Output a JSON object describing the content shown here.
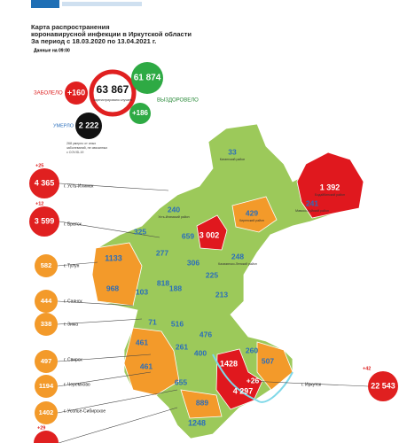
{
  "header": {
    "title_lines": [
      "Карта распространения",
      "коронавирусной инфекции в Иркутской области",
      "За период с 18.03.2020 по 13.04.2021 г."
    ],
    "data_time": "Данные на 09:00"
  },
  "stats": {
    "infected_label": "ЗАБОЛЕЛО",
    "infected_new": "+160",
    "infected_total": "63 867",
    "infected_caption": "зарегистрировано случаев",
    "recovered_total": "61 874",
    "recovered_label": "ВЫЗДОРОВЕЛО",
    "recovered_new": "+186",
    "died_label": "УМЕРЛО",
    "died_total": "2 222",
    "died_note_lines": [
      "268 умерло от иных",
      "заболеваний, не связанных",
      "с COVID-19"
    ]
  },
  "callouts": [
    {
      "delta": "+25",
      "value": "4 365",
      "label": "г. Усть-Илимск",
      "color": "#e02020"
    },
    {
      "delta": "+12",
      "value": "3 599",
      "label": "г. Братск",
      "color": "#e02020"
    },
    {
      "value": "582",
      "label": "г. Тулун",
      "color": "#f39a2a"
    },
    {
      "value": "444",
      "label": "г. Саянск",
      "color": "#f39a2a"
    },
    {
      "value": "338",
      "label": "г. Зима",
      "color": "#f39a2a"
    },
    {
      "value": "497",
      "label": "г. Свирск",
      "color": "#f39a2a"
    },
    {
      "value": "1194",
      "label": "г. Черемхово",
      "color": "#f39a2a"
    },
    {
      "value": "1402",
      "label": "г. Усолье-Сибирское",
      "color": "#f39a2a"
    },
    {
      "delta": "+29",
      "color": "#e02020"
    },
    {
      "delta": "+42",
      "value": "22 543",
      "label": "г. Иркутск",
      "color": "#e02020"
    }
  ],
  "regions": [
    {
      "value": "33",
      "name": "Катангский район",
      "color": "green"
    },
    {
      "value": "1 392",
      "name": "Бодайбинский район",
      "color": "red"
    },
    {
      "value": "241",
      "name": "Мамско-Чуйский район",
      "color": "green"
    },
    {
      "value": "429",
      "name": "Киренский район",
      "color": "orange"
    },
    {
      "value": "240",
      "name": "Усть-Илимский район",
      "color": "green"
    },
    {
      "value": "3 002",
      "color": "red"
    },
    {
      "value": "659",
      "color": "green"
    },
    {
      "value": "325",
      "color": "green"
    },
    {
      "value": "277",
      "color": "green"
    },
    {
      "value": "306",
      "color": "green"
    },
    {
      "value": "248",
      "name": "Казачинско-Ленский район",
      "color": "green"
    },
    {
      "value": "1133",
      "color": "orange"
    },
    {
      "value": "225",
      "color": "green"
    },
    {
      "value": "968",
      "color": "orange"
    },
    {
      "value": "103",
      "color": "green"
    },
    {
      "value": "818",
      "color": "green"
    },
    {
      "value": "188",
      "color": "green"
    },
    {
      "value": "213",
      "color": "green"
    },
    {
      "value": "71",
      "color": "green"
    },
    {
      "value": "516",
      "color": "green"
    },
    {
      "value": "476",
      "color": "green"
    },
    {
      "value": "461",
      "color": "orange"
    },
    {
      "value": "261",
      "color": "green"
    },
    {
      "value": "400",
      "color": "green"
    },
    {
      "value": "461",
      "color": "orange"
    },
    {
      "value": "1428",
      "color": "red"
    },
    {
      "value": "260",
      "color": "green"
    },
    {
      "value": "507",
      "color": "orange"
    },
    {
      "value": "655",
      "color": "orange"
    },
    {
      "value": "4 297",
      "color": "red"
    },
    {
      "value": "+26",
      "color": "red"
    },
    {
      "value": "889",
      "color": "orange"
    },
    {
      "value": "1248",
      "color": "green"
    }
  ]
}
